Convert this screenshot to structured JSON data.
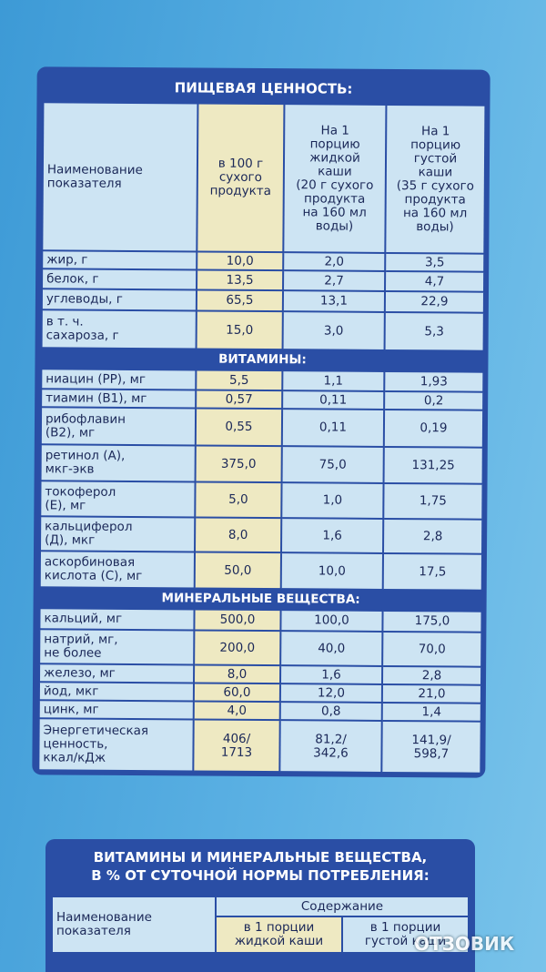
{
  "table": {
    "title": "ПИЩЕВАЯ ЦЕННОСТЬ:",
    "header": [
      "Наименование\nпоказателя",
      "в 100 г\nсухого\nпродукта",
      "На 1\nпорцию\nжидкой\nкаши\n(20 г сухого\nпродукта\nна 160 мл\nводы)",
      "На 1\nпорцию\nгустой\nкаши\n(35 г сухого\nпродукта\nна 160 мл\nводы)"
    ],
    "groups": [
      {
        "rows": [
          [
            "жир, г",
            "10,0",
            "2,0",
            "3,5"
          ],
          [
            "белок, г",
            "13,5",
            "2,7",
            "4,7"
          ],
          [
            "углеводы, г",
            "65,5",
            "13,1",
            "22,9"
          ],
          [
            "в т. ч.\nсахароза, г",
            "15,0",
            "3,0",
            "5,3"
          ]
        ]
      },
      {
        "title": "ВИТАМИНЫ:",
        "rows": [
          [
            "ниацин (РР), мг",
            "5,5",
            "1,1",
            "1,93"
          ],
          [
            "тиамин (В1), мг",
            "0,57",
            "0,11",
            "0,2"
          ],
          [
            "рибофлавин\n(В2), мг",
            "0,55",
            "0,11",
            "0,19"
          ],
          [
            "ретинол (А),\nмкг-экв",
            "375,0",
            "75,0",
            "131,25"
          ],
          [
            "токоферол\n(Е), мг",
            "5,0",
            "1,0",
            "1,75"
          ],
          [
            "кальциферол\n(Д), мкг",
            "8,0",
            "1,6",
            "2,8"
          ],
          [
            "аскорбиновая\nкислота (С), мг",
            "50,0",
            "10,0",
            "17,5"
          ]
        ]
      },
      {
        "title": "МИНЕРАЛЬНЫЕ  ВЕЩЕСТВА:",
        "rows": [
          [
            "кальций, мг",
            "500,0",
            "100,0",
            "175,0"
          ],
          [
            "натрий, мг,\nне более",
            "200,0",
            "40,0",
            "70,0"
          ],
          [
            "железо, мг",
            "8,0",
            "1,6",
            "2,8"
          ],
          [
            "йод, мкг",
            "60,0",
            "12,0",
            "21,0"
          ],
          [
            "цинк, мг",
            "4,0",
            "0,8",
            "1,4"
          ],
          [
            "Энергетическая\nценность,\nккал/кДж",
            "406/\n1713",
            "81,2/\n342,6",
            "141,9/\n598,7"
          ]
        ]
      }
    ]
  },
  "table2": {
    "title": "ВИТАМИНЫ И МИНЕРАЛЬНЫЕ ВЕЩЕСТВА,\nВ  %  ОТ СУТОЧНОЙ НОРМЫ ПОТРЕБЛЕНИЯ:",
    "header": [
      "Наименование\nпоказателя",
      "Содержание",
      "в 1 порции\nжидкой каши",
      "в 1 порции\nгустой каши"
    ]
  },
  "watermark": "ОТЗОВИК"
}
